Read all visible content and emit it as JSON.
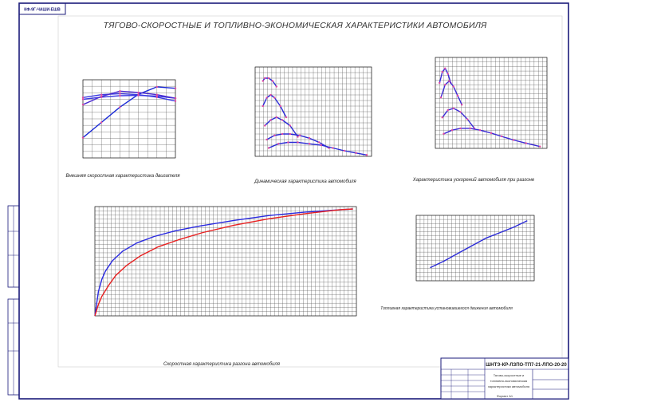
{
  "sheet": {
    "title": "ТЯГОВО-СКОРОСТНЫЕ И ТОПЛИВНО-ЭКОНОМИЧЕСКАЯ ХАРАКТЕРИСТИКИ АВТОМОБИЛЯ",
    "stamp_corner": "КФ-9Г-ЧАШИ-ЕШВ",
    "title_block": {
      "code": "ШНТЭ-КР-ЛЗПО-ТП7-21-ЛПО-20-20",
      "name_line1": "Тягово-скоростные и",
      "name_line2": "топливно-экономическая",
      "name_line3": "характеристики автомобиля",
      "format": "Формат A1"
    }
  },
  "chart_data": [
    {
      "type": "line",
      "title": "Внешняя скоростная характеристика двигателя",
      "series": [
        {
          "x": [
            1000,
            2000,
            3000,
            4000,
            5000,
            6000
          ],
          "values": [
            57,
            100,
            143,
            179,
            200,
            196
          ]
        },
        {
          "x": [
            1000,
            2000,
            3000,
            4000,
            5000,
            6000
          ],
          "values": [
            170,
            178,
            181,
            178,
            171,
            160
          ]
        },
        {
          "x": [
            1000,
            2000,
            3000,
            4000,
            5000,
            6000
          ],
          "values": [
            165,
            171,
            175,
            176,
            174,
            168
          ]
        },
        {
          "x": [
            1000,
            2000,
            3000,
            4000,
            5000,
            6000
          ],
          "values": [
            150,
            173,
            188,
            184,
            178,
            168
          ]
        }
      ]
    },
    {
      "type": "line",
      "title": "Динамическая характеристика автомобиля",
      "series": [
        {
          "x": [
            8,
            10,
            14,
            18,
            22
          ],
          "values": [
            0.27,
            0.28,
            0.28,
            0.27,
            0.25
          ]
        },
        {
          "x": [
            8,
            12,
            16,
            20,
            26,
            32
          ],
          "values": [
            0.18,
            0.21,
            0.22,
            0.21,
            0.18,
            0.14
          ]
        },
        {
          "x": [
            10,
            16,
            22,
            28,
            36,
            44
          ],
          "values": [
            0.11,
            0.13,
            0.14,
            0.13,
            0.11,
            0.07
          ]
        },
        {
          "x": [
            12,
            20,
            28,
            36,
            46,
            56,
            66,
            76
          ],
          "values": [
            0.06,
            0.075,
            0.08,
            0.08,
            0.075,
            0.065,
            0.05,
            0.03
          ]
        },
        {
          "x": [
            14,
            24,
            34,
            44,
            56,
            68,
            80,
            92,
            104,
            115
          ],
          "values": [
            0.03,
            0.045,
            0.05,
            0.05,
            0.045,
            0.04,
            0.03,
            0.02,
            0.012,
            0.005
          ]
        }
      ]
    },
    {
      "type": "line",
      "title": "Характеристика ускорений автомобиля при разгоне",
      "series": [
        {
          "x": [
            6,
            10,
            14,
            18,
            22
          ],
          "values": [
            1.8,
            2.1,
            2.2,
            2.05,
            1.8
          ]
        },
        {
          "x": [
            8,
            14,
            20,
            26,
            32,
            38
          ],
          "values": [
            1.4,
            1.75,
            1.85,
            1.7,
            1.45,
            1.2
          ]
        },
        {
          "x": [
            10,
            18,
            26,
            36,
            46,
            56
          ],
          "values": [
            0.85,
            1.05,
            1.1,
            1.0,
            0.8,
            0.55
          ]
        },
        {
          "x": [
            12,
            24,
            36,
            50,
            64,
            80,
            95,
            112,
            130,
            150
          ],
          "values": [
            0.4,
            0.5,
            0.55,
            0.55,
            0.5,
            0.42,
            0.33,
            0.23,
            0.14,
            0.05
          ]
        }
      ]
    },
    {
      "type": "line",
      "title": "Скоростная характеристика разгона автомобиля",
      "series": [
        {
          "x": [
            0,
            0.5,
            1,
            2,
            3,
            5,
            8,
            12,
            17,
            23,
            30,
            40,
            50,
            60,
            70,
            74
          ],
          "values": [
            0,
            15,
            30,
            45,
            55,
            68,
            80,
            90,
            98,
            105,
            111,
            118,
            124,
            128,
            131,
            132
          ]
        },
        {
          "x": [
            0,
            1,
            2,
            4,
            6,
            9,
            13,
            18,
            24,
            31,
            40,
            50,
            60,
            70,
            74
          ],
          "values": [
            0,
            14,
            24,
            38,
            50,
            62,
            74,
            85,
            94,
            103,
            112,
            120,
            126,
            131,
            132
          ]
        }
      ]
    },
    {
      "type": "line",
      "title": "Топливная характеристика установившегося движения автомобиля",
      "series": [
        {
          "x": [
            20,
            40,
            60,
            80,
            100,
            120,
            140,
            160
          ],
          "values": [
            3.2,
            3.8,
            4.5,
            5.2,
            5.9,
            6.4,
            6.9,
            7.5
          ]
        }
      ]
    }
  ]
}
